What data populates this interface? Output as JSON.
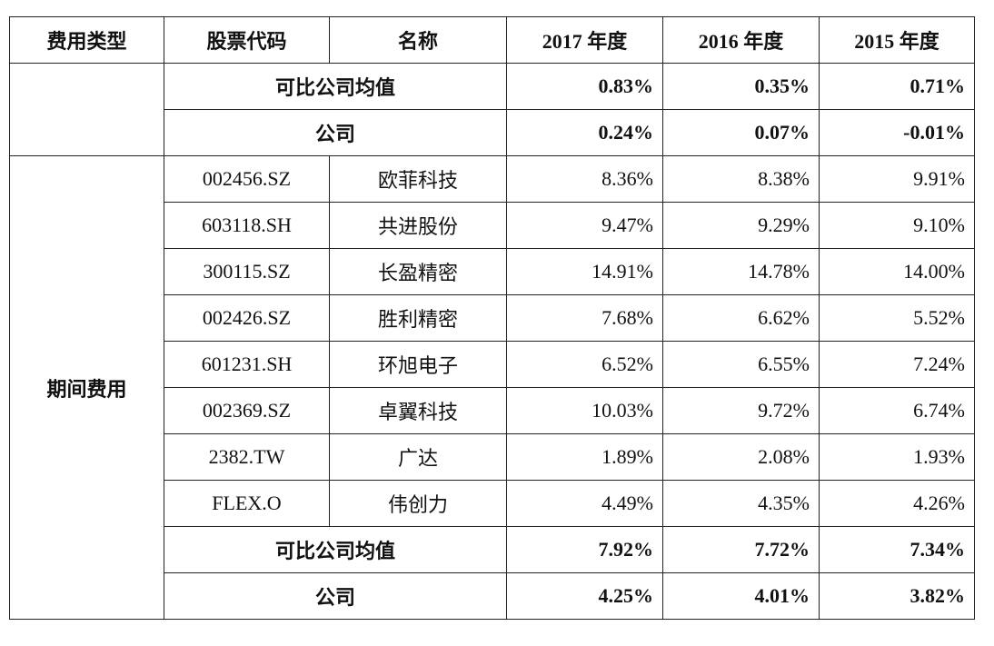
{
  "headers": [
    "费用类型",
    "股票代码",
    "名称",
    "2017 年度",
    "2016 年度",
    "2015 年度"
  ],
  "group_a": {
    "type": "",
    "rows": [
      {
        "label": "可比公司均值",
        "y2017": "0.83%",
        "y2016": "0.35%",
        "y2015": "0.71%"
      },
      {
        "label": "公司",
        "y2017": "0.24%",
        "y2016": "0.07%",
        "y2015": "-0.01%"
      }
    ]
  },
  "group_b": {
    "type": "期间费用",
    "companies": [
      {
        "code": "002456.SZ",
        "name": "欧菲科技",
        "y2017": "8.36%",
        "y2016": "8.38%",
        "y2015": "9.91%"
      },
      {
        "code": "603118.SH",
        "name": "共进股份",
        "y2017": "9.47%",
        "y2016": "9.29%",
        "y2015": "9.10%"
      },
      {
        "code": "300115.SZ",
        "name": "长盈精密",
        "y2017": "14.91%",
        "y2016": "14.78%",
        "y2015": "14.00%"
      },
      {
        "code": "002426.SZ",
        "name": "胜利精密",
        "y2017": "7.68%",
        "y2016": "6.62%",
        "y2015": "5.52%"
      },
      {
        "code": "601231.SH",
        "name": "环旭电子",
        "y2017": "6.52%",
        "y2016": "6.55%",
        "y2015": "7.24%"
      },
      {
        "code": "002369.SZ",
        "name": "卓翼科技",
        "y2017": "10.03%",
        "y2016": "9.72%",
        "y2015": "6.74%"
      },
      {
        "code": "2382.TW",
        "name": "广达",
        "y2017": "1.89%",
        "y2016": "2.08%",
        "y2015": "1.93%"
      },
      {
        "code": "FLEX.O",
        "name": "伟创力",
        "y2017": "4.49%",
        "y2016": "4.35%",
        "y2015": "4.26%"
      }
    ],
    "summary": [
      {
        "label": "可比公司均值",
        "y2017": "7.92%",
        "y2016": "7.72%",
        "y2015": "7.34%"
      },
      {
        "label": "公司",
        "y2017": "4.25%",
        "y2016": "4.01%",
        "y2015": "3.82%"
      }
    ]
  }
}
